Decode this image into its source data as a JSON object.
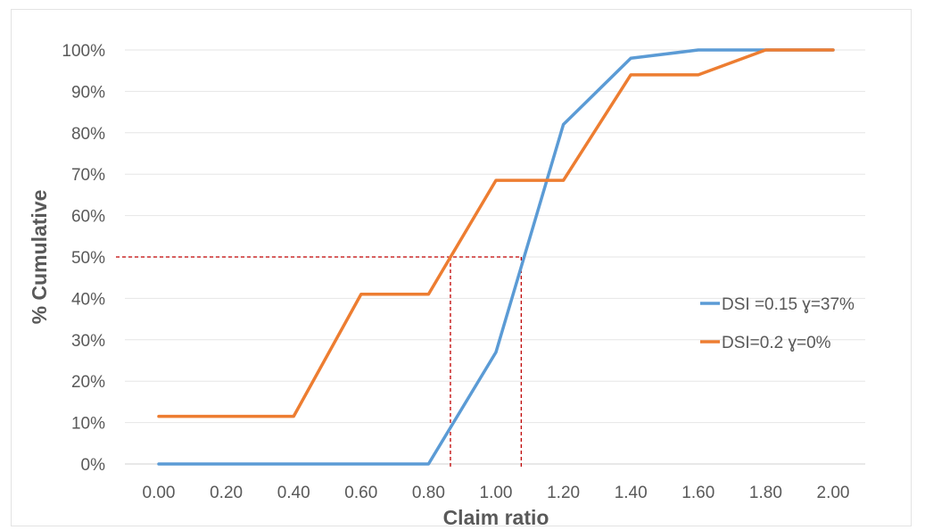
{
  "chart_data": {
    "type": "line",
    "title": "",
    "xlabel": "Claim ratio",
    "ylabel": "% Cumulative",
    "x": [
      0.0,
      0.2,
      0.4,
      0.6,
      0.8,
      1.0,
      1.2,
      1.4,
      1.6,
      1.8,
      2.0
    ],
    "x_tick_labels": [
      "0.00",
      "0.20",
      "0.40",
      "0.60",
      "0.80",
      "1.00",
      "1.20",
      "1.40",
      "1.60",
      "1.80",
      "2.00"
    ],
    "y_tick_labels": [
      "0%",
      "10%",
      "20%",
      "30%",
      "40%",
      "50%",
      "60%",
      "70%",
      "80%",
      "90%",
      "100%"
    ],
    "ylim": [
      0,
      100
    ],
    "xlim": [
      0,
      2
    ],
    "grid": true,
    "legend_position": "right",
    "series": [
      {
        "name": "DSI =0.15 ɣ=37%",
        "color": "#5b9bd5",
        "values": [
          0,
          0,
          0,
          0,
          0,
          27,
          82,
          98,
          100,
          100,
          100
        ]
      },
      {
        "name": "DSI=0.2 ɣ=0%",
        "color": "#ed7d31",
        "values": [
          11.5,
          11.5,
          11.5,
          41,
          41,
          68.5,
          68.5,
          94,
          94,
          100,
          100
        ]
      }
    ],
    "reference_lines": {
      "color": "#c00000",
      "y": 50,
      "x": [
        0.865,
        1.075
      ]
    }
  }
}
